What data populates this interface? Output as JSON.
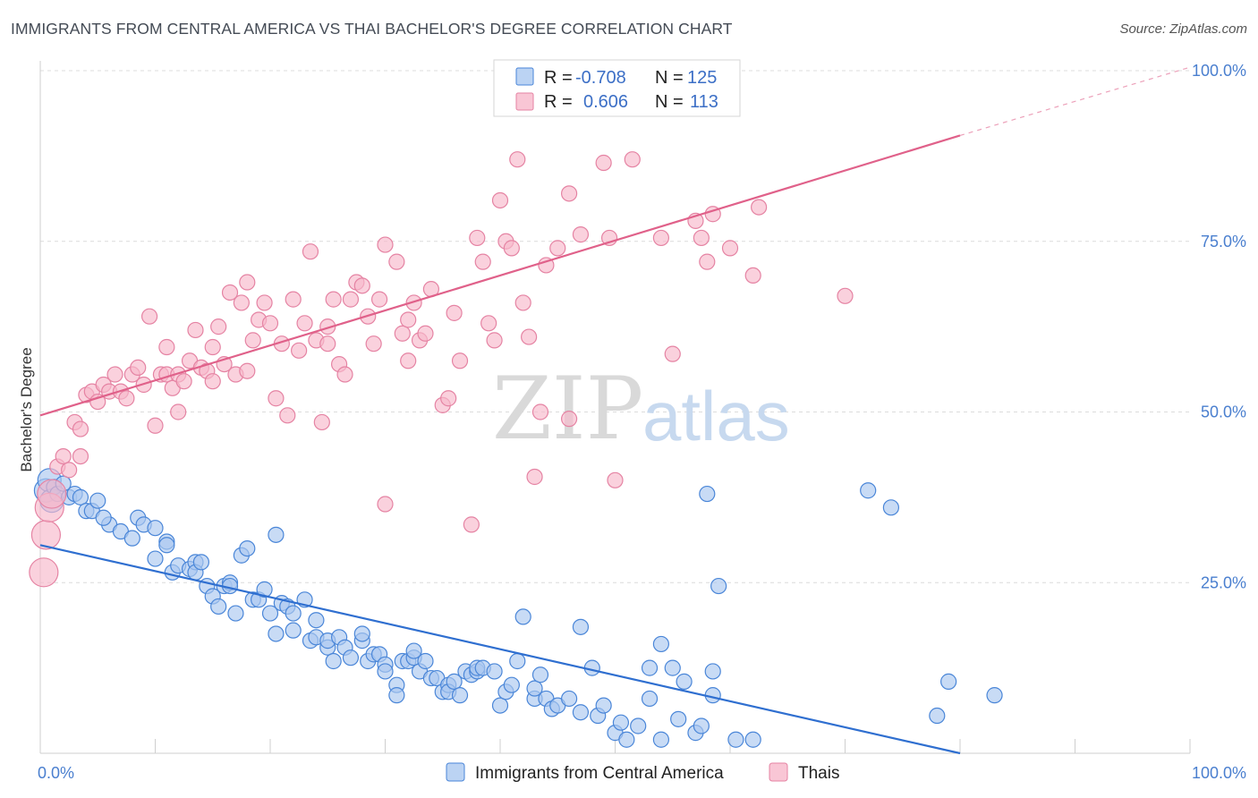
{
  "title": "IMMIGRANTS FROM CENTRAL AMERICA VS THAI BACHELOR'S DEGREE CORRELATION CHART",
  "source": "Source: ZipAtlas.com",
  "watermark": {
    "zip": "ZIP",
    "atlas": "atlas"
  },
  "colors": {
    "blue_fill": "#aac8f0",
    "blue_stroke": "#4a86d8",
    "blue_line": "#2f6fd0",
    "pink_fill": "#f7b8cb",
    "pink_stroke": "#e583a3",
    "pink_line": "#e0618a",
    "tick_text": "#4a7fcf",
    "grid": "#dcdcdc"
  },
  "legend": {
    "r_label": "R =",
    "n_label": "N =",
    "entries": [
      {
        "r": "-0.708",
        "n": "125"
      },
      {
        "r": "0.606",
        "n": "113"
      }
    ]
  },
  "chart_data": {
    "type": "scatter",
    "title": "IMMIGRANTS FROM CENTRAL AMERICA VS THAI BACHELOR'S DEGREE CORRELATION CHART",
    "xlabel": "",
    "ylabel": "Bachelor's Degree",
    "xlim": [
      0,
      100
    ],
    "ylim": [
      0,
      100
    ],
    "x_tick_labels": [
      "0.0%",
      "100.0%"
    ],
    "y_tick_labels": [
      "25.0%",
      "50.0%",
      "75.0%",
      "100.0%"
    ],
    "y_ticks": [
      25,
      50,
      75,
      100
    ],
    "grid": true,
    "legend_position": "top-center",
    "series": [
      {
        "name": "Immigrants from Central America",
        "r": -0.708,
        "n": 125,
        "trend": {
          "x0": 0,
          "y0": 30.5,
          "x1": 80,
          "y1": 0
        },
        "points": [
          [
            0.5,
            38.5
          ],
          [
            0.8,
            40
          ],
          [
            1,
            37
          ],
          [
            1.2,
            39
          ],
          [
            1.5,
            38
          ],
          [
            2,
            39.5
          ],
          [
            2.5,
            37.5
          ],
          [
            3,
            38
          ],
          [
            3.5,
            37.5
          ],
          [
            4,
            35.5
          ],
          [
            4.5,
            35.5
          ],
          [
            5,
            37
          ],
          [
            6,
            33.5
          ],
          [
            5.5,
            34.5
          ],
          [
            7,
            32.5
          ],
          [
            8,
            31.5
          ],
          [
            8.5,
            34.5
          ],
          [
            9,
            33.5
          ],
          [
            10,
            28.5
          ],
          [
            10,
            33
          ],
          [
            11,
            31
          ],
          [
            11,
            30.5
          ],
          [
            11.5,
            26.5
          ],
          [
            12,
            27.5
          ],
          [
            13,
            27
          ],
          [
            13.5,
            28
          ],
          [
            13.5,
            26.5
          ],
          [
            14,
            28
          ],
          [
            14.5,
            24.5
          ],
          [
            15,
            23
          ],
          [
            15.5,
            21.5
          ],
          [
            16,
            24.5
          ],
          [
            16.5,
            25
          ],
          [
            16.5,
            24.5
          ],
          [
            17,
            20.5
          ],
          [
            17.5,
            29
          ],
          [
            18,
            30
          ],
          [
            18.5,
            22.5
          ],
          [
            19,
            22.5
          ],
          [
            19.5,
            24
          ],
          [
            20,
            20.5
          ],
          [
            20.5,
            17.5
          ],
          [
            20.5,
            32
          ],
          [
            21,
            22
          ],
          [
            21.5,
            21.5
          ],
          [
            22,
            20.5
          ],
          [
            22,
            18
          ],
          [
            23,
            22.5
          ],
          [
            23.5,
            16.5
          ],
          [
            24,
            19.5
          ],
          [
            24,
            17
          ],
          [
            25,
            15.5
          ],
          [
            25,
            16.5
          ],
          [
            25.5,
            13.5
          ],
          [
            26,
            17
          ],
          [
            26.5,
            15.5
          ],
          [
            27,
            14
          ],
          [
            28,
            16.5
          ],
          [
            28,
            17.5
          ],
          [
            28.5,
            13.5
          ],
          [
            29,
            14.5
          ],
          [
            29.5,
            14.5
          ],
          [
            30,
            13
          ],
          [
            30,
            12
          ],
          [
            31,
            10
          ],
          [
            31,
            8.5
          ],
          [
            31.5,
            13.5
          ],
          [
            32,
            13.5
          ],
          [
            32.5,
            14
          ],
          [
            32.5,
            15
          ],
          [
            33,
            12
          ],
          [
            33.5,
            13.5
          ],
          [
            34,
            11
          ],
          [
            34.5,
            11
          ],
          [
            35,
            9
          ],
          [
            35.5,
            10
          ],
          [
            35.5,
            9
          ],
          [
            36,
            10.5
          ],
          [
            36.5,
            8.5
          ],
          [
            37,
            12
          ],
          [
            37.5,
            11.5
          ],
          [
            38,
            12
          ],
          [
            38,
            12.5
          ],
          [
            38.5,
            12.5
          ],
          [
            39.5,
            12
          ],
          [
            40,
            7
          ],
          [
            40.5,
            9
          ],
          [
            41,
            10
          ],
          [
            41.5,
            13.5
          ],
          [
            42,
            20
          ],
          [
            43,
            8
          ],
          [
            43,
            9.5
          ],
          [
            43.5,
            11.5
          ],
          [
            44,
            8
          ],
          [
            44.5,
            6.5
          ],
          [
            45,
            7
          ],
          [
            46,
            8
          ],
          [
            47,
            18.5
          ],
          [
            47,
            6
          ],
          [
            48,
            12.5
          ],
          [
            48.5,
            5.5
          ],
          [
            49,
            7
          ],
          [
            50,
            3
          ],
          [
            50.5,
            4.5
          ],
          [
            51,
            2
          ],
          [
            52,
            4
          ],
          [
            53,
            8
          ],
          [
            53,
            12.5
          ],
          [
            54,
            16
          ],
          [
            54,
            2
          ],
          [
            55,
            12.5
          ],
          [
            55.5,
            5
          ],
          [
            56,
            10.5
          ],
          [
            57,
            3
          ],
          [
            57.5,
            4
          ],
          [
            58,
            38
          ],
          [
            58.5,
            12
          ],
          [
            58.5,
            8.5
          ],
          [
            59,
            24.5
          ],
          [
            60.5,
            2
          ],
          [
            62,
            2
          ],
          [
            72,
            38.5
          ],
          [
            74,
            36
          ],
          [
            78,
            5.5
          ],
          [
            79,
            10.5
          ],
          [
            83,
            8.5
          ]
        ]
      },
      {
        "name": "Thais",
        "r": 0.606,
        "n": 113,
        "trend": {
          "x0": 0,
          "y0": 49.5,
          "x1": 80,
          "y1": 90.5
        },
        "trend_extension": {
          "x0": 80,
          "y0": 90.5,
          "x1": 100,
          "y1": 100.5
        },
        "points": [
          [
            0.3,
            26.5
          ],
          [
            0.5,
            32
          ],
          [
            0.8,
            36
          ],
          [
            1,
            38
          ],
          [
            1.5,
            42
          ],
          [
            2,
            43.5
          ],
          [
            2.5,
            41.5
          ],
          [
            3,
            48.5
          ],
          [
            3.5,
            47.5
          ],
          [
            3.5,
            43.5
          ],
          [
            4,
            52.5
          ],
          [
            4.5,
            53
          ],
          [
            5,
            51.5
          ],
          [
            5.5,
            54
          ],
          [
            6,
            53
          ],
          [
            6.5,
            55.5
          ],
          [
            7,
            53
          ],
          [
            7.5,
            52
          ],
          [
            8,
            55.5
          ],
          [
            8.5,
            56.5
          ],
          [
            9,
            54
          ],
          [
            9.5,
            64
          ],
          [
            10,
            48
          ],
          [
            10.5,
            55.5
          ],
          [
            11,
            59.5
          ],
          [
            11,
            55.5
          ],
          [
            11.5,
            53.5
          ],
          [
            12,
            55.5
          ],
          [
            12,
            50
          ],
          [
            12.5,
            54.5
          ],
          [
            13,
            57.5
          ],
          [
            13.5,
            62
          ],
          [
            14,
            56.5
          ],
          [
            14.5,
            56
          ],
          [
            15,
            54.5
          ],
          [
            15,
            59.5
          ],
          [
            15.5,
            62.5
          ],
          [
            16,
            57
          ],
          [
            16.5,
            67.5
          ],
          [
            17,
            55.5
          ],
          [
            17.5,
            66
          ],
          [
            18,
            56
          ],
          [
            18,
            69
          ],
          [
            18.5,
            60.5
          ],
          [
            19,
            63.5
          ],
          [
            19.5,
            66
          ],
          [
            20,
            63
          ],
          [
            20.5,
            52
          ],
          [
            21,
            60
          ],
          [
            21.5,
            49.5
          ],
          [
            22,
            66.5
          ],
          [
            22.5,
            59
          ],
          [
            23,
            63
          ],
          [
            23.5,
            73.5
          ],
          [
            24,
            60.5
          ],
          [
            24.5,
            48.5
          ],
          [
            25,
            60
          ],
          [
            25,
            62.5
          ],
          [
            25.5,
            66.5
          ],
          [
            26,
            57
          ],
          [
            26.5,
            55.5
          ],
          [
            27,
            66.5
          ],
          [
            27.5,
            69
          ],
          [
            28,
            68.5
          ],
          [
            28.5,
            64
          ],
          [
            29,
            60
          ],
          [
            29.5,
            66.5
          ],
          [
            30,
            74.5
          ],
          [
            30,
            36.5
          ],
          [
            31,
            72
          ],
          [
            31.5,
            61.5
          ],
          [
            32,
            63.5
          ],
          [
            32,
            57.5
          ],
          [
            32.5,
            66
          ],
          [
            33,
            60.5
          ],
          [
            33.5,
            61.5
          ],
          [
            34,
            68
          ],
          [
            35,
            51
          ],
          [
            35.5,
            52
          ],
          [
            36,
            64.5
          ],
          [
            36.5,
            57.5
          ],
          [
            37.5,
            33.5
          ],
          [
            38,
            75.5
          ],
          [
            38.5,
            72
          ],
          [
            39,
            63
          ],
          [
            39.5,
            60.5
          ],
          [
            40,
            81
          ],
          [
            40.5,
            75
          ],
          [
            41,
            74
          ],
          [
            41.5,
            87
          ],
          [
            42,
            66
          ],
          [
            42.5,
            61
          ],
          [
            43,
            40.5
          ],
          [
            43.5,
            50
          ],
          [
            44,
            71.5
          ],
          [
            45,
            74
          ],
          [
            46,
            49
          ],
          [
            46,
            82
          ],
          [
            47,
            76
          ],
          [
            49,
            86.5
          ],
          [
            49.5,
            75.5
          ],
          [
            50,
            40
          ],
          [
            51.5,
            87
          ],
          [
            54,
            75.5
          ],
          [
            55,
            58.5
          ],
          [
            57,
            78
          ],
          [
            57.5,
            75.5
          ],
          [
            58,
            72
          ],
          [
            58.5,
            79
          ],
          [
            60,
            74
          ],
          [
            62,
            70
          ],
          [
            62.5,
            80
          ],
          [
            70,
            67
          ]
        ]
      }
    ]
  },
  "bottom_legend": [
    {
      "label": "Immigrants from Central America"
    },
    {
      "label": "Thais"
    }
  ]
}
